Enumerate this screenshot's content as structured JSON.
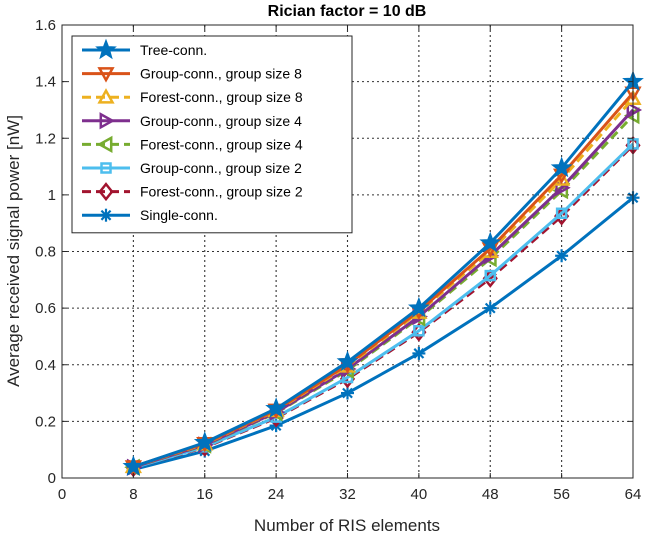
{
  "chart_data": {
    "type": "line",
    "title": "Rician factor = 10 dB",
    "xlabel": "Number of RIS elements",
    "ylabel": "Average received signal power [nW]",
    "xlim": [
      0,
      64
    ],
    "ylim": [
      0,
      1.6
    ],
    "xticks": [
      0,
      8,
      16,
      24,
      32,
      40,
      48,
      56,
      64
    ],
    "yticks": [
      0,
      0.2,
      0.4,
      0.6,
      0.8,
      1,
      1.2,
      1.4,
      1.6
    ],
    "grid": true,
    "legend_position": "top-left",
    "x": [
      8,
      16,
      24,
      32,
      40,
      48,
      56,
      64
    ],
    "series": [
      {
        "name": "Tree-conn.",
        "color": "#0072BD",
        "marker": "star",
        "dash": "solid",
        "values": [
          0.04,
          0.125,
          0.245,
          0.41,
          0.6,
          0.83,
          1.095,
          1.4
        ]
      },
      {
        "name": "Group-conn., group size 8",
        "color": "#D95319",
        "marker": "triangle-down",
        "dash": "solid",
        "values": [
          0.04,
          0.122,
          0.24,
          0.4,
          0.59,
          0.81,
          1.07,
          1.36
        ]
      },
      {
        "name": "Forest-conn., group size 8",
        "color": "#EDB120",
        "marker": "triangle-up",
        "dash": "dashed",
        "values": [
          0.04,
          0.12,
          0.238,
          0.395,
          0.585,
          0.8,
          1.055,
          1.34
        ]
      },
      {
        "name": "Group-conn., group size 4",
        "color": "#7E2F8E",
        "marker": "triangle-right",
        "dash": "solid",
        "values": [
          0.038,
          0.117,
          0.232,
          0.385,
          0.57,
          0.785,
          1.025,
          1.3
        ]
      },
      {
        "name": "Forest-conn., group size 4",
        "color": "#77AC30",
        "marker": "triangle-left",
        "dash": "dashed",
        "values": [
          0.038,
          0.116,
          0.23,
          0.38,
          0.565,
          0.775,
          1.015,
          1.28
        ]
      },
      {
        "name": "Group-conn., group size 2",
        "color": "#4DBEEE",
        "marker": "square",
        "dash": "solid",
        "values": [
          0.036,
          0.11,
          0.215,
          0.355,
          0.52,
          0.715,
          0.935,
          1.18
        ]
      },
      {
        "name": "Forest-conn., group size 2",
        "color": "#A2142F",
        "marker": "diamond",
        "dash": "dashed",
        "values": [
          0.036,
          0.108,
          0.212,
          0.35,
          0.515,
          0.705,
          0.925,
          1.175
        ]
      },
      {
        "name": "Single-conn.",
        "color": "#0072BD",
        "marker": "asterisk",
        "dash": "solid",
        "values": [
          0.03,
          0.095,
          0.185,
          0.3,
          0.44,
          0.6,
          0.785,
          0.99
        ]
      }
    ]
  }
}
